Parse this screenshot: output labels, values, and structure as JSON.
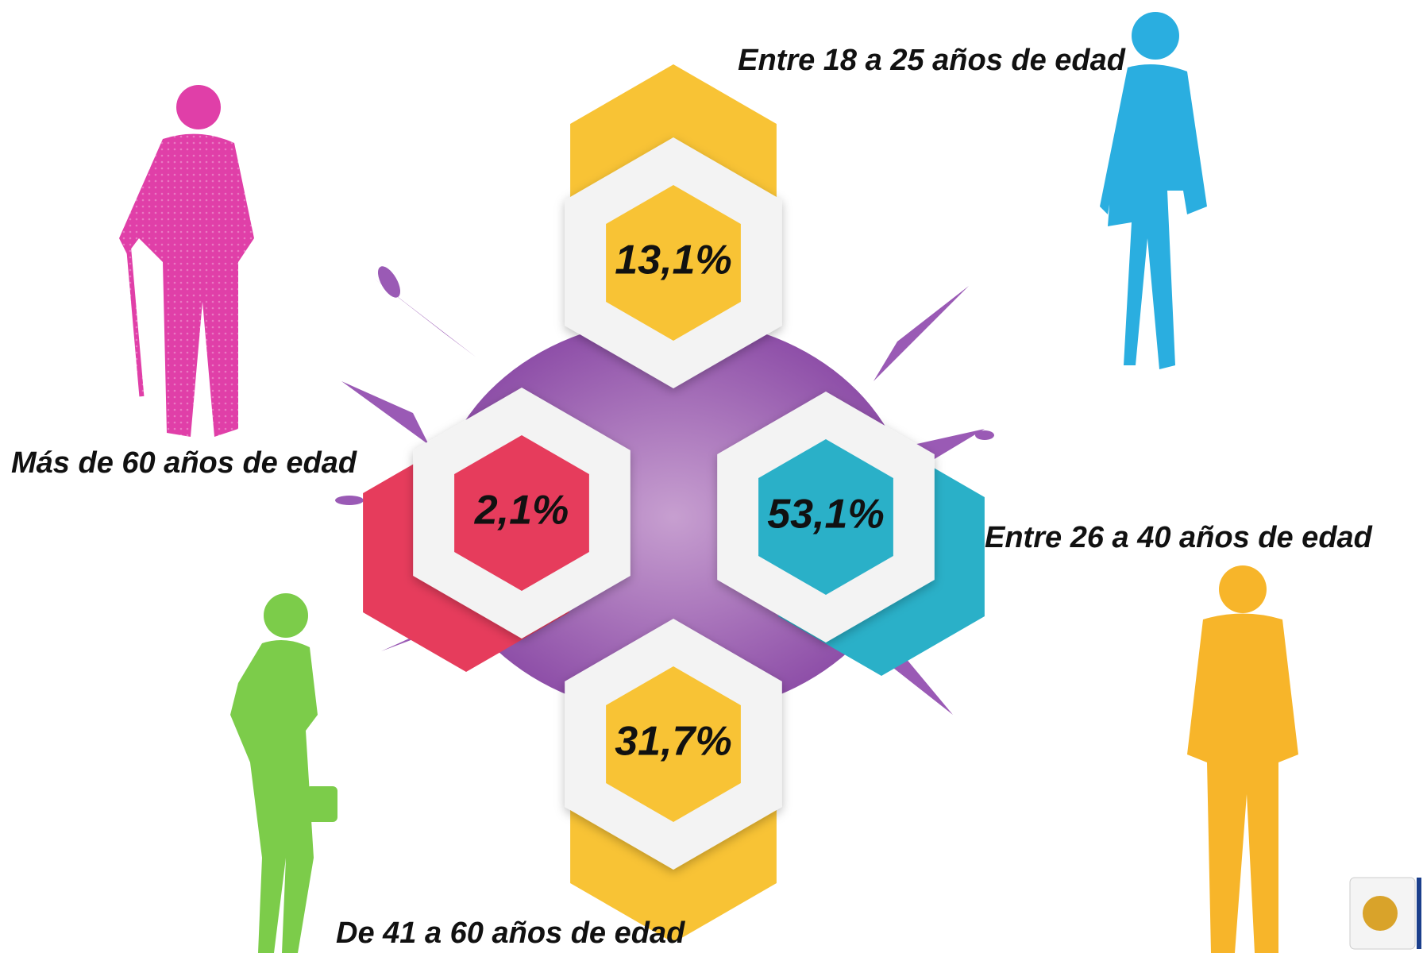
{
  "groups": [
    {
      "label": "Entre 18 a 25 años de edad",
      "value": "13,1%"
    },
    {
      "label": "Más de 60 años de edad",
      "value": "2,1%"
    },
    {
      "label": "Entre 26 a 40 años de edad",
      "value": "53,1%"
    },
    {
      "label": "De 41 a 60 años de edad",
      "value": "31,7%"
    }
  ]
}
